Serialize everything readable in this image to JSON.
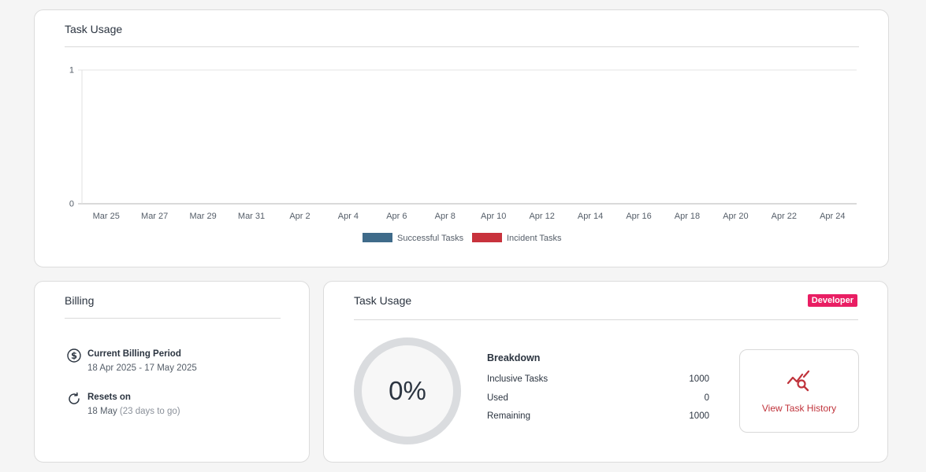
{
  "chart_card": {
    "title": "Task Usage"
  },
  "chart_data": {
    "type": "bar",
    "title": "",
    "xlabel": "",
    "ylabel": "",
    "categories": [
      "Mar 25",
      "Mar 27",
      "Mar 29",
      "Mar 31",
      "Apr 2",
      "Apr 4",
      "Apr 6",
      "Apr 8",
      "Apr 10",
      "Apr 12",
      "Apr 14",
      "Apr 16",
      "Apr 18",
      "Apr 20",
      "Apr 22",
      "Apr 24"
    ],
    "y_ticks": [
      "1",
      "0"
    ],
    "ylim": [
      0,
      1
    ],
    "grid": true,
    "legend_position": "bottom",
    "series": [
      {
        "name": "Successful Tasks",
        "color": "#3f6b8a",
        "values": [
          0,
          0,
          0,
          0,
          0,
          0,
          0,
          0,
          0,
          0,
          0,
          0,
          0,
          0,
          0,
          0
        ]
      },
      {
        "name": "Incident Tasks",
        "color": "#c8323c",
        "values": [
          0,
          0,
          0,
          0,
          0,
          0,
          0,
          0,
          0,
          0,
          0,
          0,
          0,
          0,
          0,
          0
        ]
      }
    ]
  },
  "billing": {
    "title": "Billing",
    "period_label": "Current Billing Period",
    "period_value": "18 Apr 2025 - 17 May 2025",
    "resets_label": "Resets on",
    "resets_value": "18 May",
    "resets_note": "(23 days to go)"
  },
  "usage": {
    "title": "Task Usage",
    "plan_badge": "Developer",
    "gauge_value": "0%",
    "breakdown_title": "Breakdown",
    "rows": [
      {
        "label": "Inclusive Tasks",
        "value": "1000"
      },
      {
        "label": "Used",
        "value": "0"
      },
      {
        "label": "Remaining",
        "value": "1000"
      }
    ],
    "history_button_label": "View Task History"
  },
  "icons": {
    "billing_period": "dollar-circle-icon",
    "resets": "refresh-icon",
    "history": "chart-search-icon"
  },
  "colors": {
    "accent": "#e91e63",
    "history": "#c0333b"
  }
}
